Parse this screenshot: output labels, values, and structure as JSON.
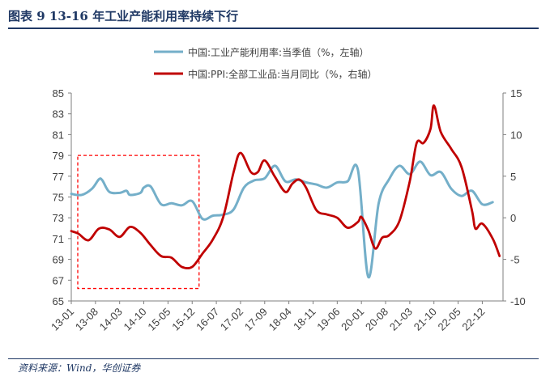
{
  "title": "图表 9   13-16 年工业产能利用率持续下行",
  "source": "资料来源：Wind，华创证券",
  "chart_data": {
    "type": "line",
    "x_ticks": [
      "13-01",
      "13-08",
      "14-03",
      "14-10",
      "15-05",
      "15-12",
      "16-07",
      "17-02",
      "17-09",
      "18-04",
      "18-11",
      "19-06",
      "20-01",
      "20-08",
      "21-03",
      "21-10",
      "22-05",
      "22-12"
    ],
    "y_left": {
      "lim": [
        65,
        85
      ],
      "ticks": [
        "65",
        "67",
        "69",
        "71",
        "73",
        "75",
        "77",
        "79",
        "81",
        "83",
        "85"
      ]
    },
    "y_right": {
      "lim": [
        -10,
        15
      ],
      "ticks": [
        "-10",
        "-5",
        "0",
        "5",
        "10",
        "15"
      ]
    },
    "grid": false,
    "legend_position": "top",
    "series": [
      {
        "name": "中国:工业产能利用率:当季值（%，左轴）",
        "axis": "left",
        "color": "#74afc9",
        "points": [
          [
            "13-01",
            75.3
          ],
          [
            "13-04",
            75.2
          ],
          [
            "13-07",
            75.8
          ],
          [
            "13-09",
            76.7
          ],
          [
            "13-10",
            76.6
          ],
          [
            "13-12",
            75.5
          ],
          [
            "14-03",
            75.4
          ],
          [
            "14-05",
            75.6
          ],
          [
            "14-06",
            75.2
          ],
          [
            "14-09",
            75.4
          ],
          [
            "14-10",
            75.9
          ],
          [
            "14-12",
            76.0
          ],
          [
            "15-03",
            74.3
          ],
          [
            "15-06",
            74.4
          ],
          [
            "15-09",
            74.2
          ],
          [
            "15-12",
            74.6
          ],
          [
            "16-03",
            72.9
          ],
          [
            "16-06",
            73.2
          ],
          [
            "16-09",
            73.3
          ],
          [
            "16-12",
            73.8
          ],
          [
            "17-03",
            75.9
          ],
          [
            "17-06",
            76.6
          ],
          [
            "17-09",
            76.8
          ],
          [
            "17-12",
            78.0
          ],
          [
            "18-03",
            76.5
          ],
          [
            "18-06",
            76.7
          ],
          [
            "18-09",
            76.4
          ],
          [
            "18-12",
            76.2
          ],
          [
            "19-03",
            75.9
          ],
          [
            "19-06",
            76.4
          ],
          [
            "19-09",
            76.5
          ],
          [
            "19-12",
            77.6
          ],
          [
            "20-03",
            67.3
          ],
          [
            "20-06",
            74.4
          ],
          [
            "20-09",
            76.7
          ],
          [
            "20-12",
            78.0
          ],
          [
            "21-03",
            77.2
          ],
          [
            "21-06",
            78.4
          ],
          [
            "21-09",
            77.1
          ],
          [
            "21-12",
            77.4
          ],
          [
            "22-03",
            75.8
          ],
          [
            "22-06",
            75.1
          ],
          [
            "22-09",
            75.6
          ],
          [
            "22-12",
            74.3
          ],
          [
            "23-03",
            74.5
          ]
        ]
      },
      {
        "name": "中国:PPI:全部工业品:当月同比（%，右轴）",
        "axis": "right",
        "color": "#c00000",
        "points": [
          [
            "13-01",
            -1.6
          ],
          [
            "13-03",
            -1.9
          ],
          [
            "13-06",
            -2.7
          ],
          [
            "13-09",
            -1.3
          ],
          [
            "13-12",
            -1.4
          ],
          [
            "14-03",
            -2.3
          ],
          [
            "14-06",
            -1.1
          ],
          [
            "14-09",
            -1.8
          ],
          [
            "14-12",
            -3.3
          ],
          [
            "15-03",
            -4.6
          ],
          [
            "15-06",
            -4.8
          ],
          [
            "15-09",
            -5.9
          ],
          [
            "15-12",
            -5.9
          ],
          [
            "16-03",
            -4.3
          ],
          [
            "16-06",
            -2.6
          ],
          [
            "16-09",
            0.1
          ],
          [
            "16-12",
            5.5
          ],
          [
            "17-02",
            7.8
          ],
          [
            "17-05",
            5.5
          ],
          [
            "17-07",
            5.5
          ],
          [
            "17-09",
            6.9
          ],
          [
            "17-12",
            4.9
          ],
          [
            "18-03",
            3.1
          ],
          [
            "18-05",
            4.1
          ],
          [
            "18-07",
            4.6
          ],
          [
            "18-09",
            3.6
          ],
          [
            "18-12",
            0.9
          ],
          [
            "19-03",
            0.4
          ],
          [
            "19-06",
            0.0
          ],
          [
            "19-09",
            -1.2
          ],
          [
            "19-12",
            -0.5
          ],
          [
            "20-01",
            0.1
          ],
          [
            "20-03",
            -1.5
          ],
          [
            "20-05",
            -3.7
          ],
          [
            "20-07",
            -2.4
          ],
          [
            "20-09",
            -2.1
          ],
          [
            "20-12",
            -0.4
          ],
          [
            "21-03",
            4.4
          ],
          [
            "21-05",
            9.0
          ],
          [
            "21-07",
            9.0
          ],
          [
            "21-09",
            10.7
          ],
          [
            "21-10",
            13.5
          ],
          [
            "21-12",
            10.3
          ],
          [
            "22-03",
            8.3
          ],
          [
            "22-06",
            6.1
          ],
          [
            "22-09",
            0.9
          ],
          [
            "22-10",
            -1.3
          ],
          [
            "22-12",
            -0.7
          ],
          [
            "23-03",
            -2.5
          ],
          [
            "23-05",
            -4.6
          ]
        ]
      }
    ],
    "annotation": {
      "type": "dashed-rectangle",
      "color": "#ff0000",
      "x_from": "13-01",
      "x_to": "16-02",
      "y_left_from": 66.2,
      "y_left_to": 79.0
    }
  }
}
